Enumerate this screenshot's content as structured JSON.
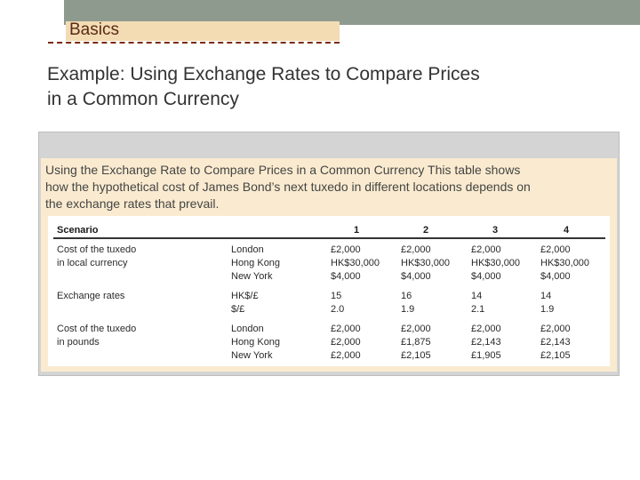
{
  "header": {
    "section_label": "Basics",
    "title_line1": "Example: Using Exchange Rates to Compare Prices",
    "title_line2": "in a Common Currency"
  },
  "figure": {
    "caption_line1": "Using the Exchange Rate to Compare Prices in a Common Currency  This table shows",
    "caption_line2": "how the hypothetical cost of James Bond’s next tuxedo in different locations depends on",
    "caption_line3": "the exchange rates that prevail."
  },
  "table": {
    "scenario_label": "Scenario",
    "scenarios": [
      "1",
      "2",
      "3",
      "4"
    ],
    "groups": [
      {
        "label_lines": [
          "Cost of the tuxedo",
          "in local currency"
        ],
        "rows": [
          {
            "location": "London",
            "values": [
              "£2,000",
              "£2,000",
              "£2,000",
              "£2,000"
            ]
          },
          {
            "location": "Hong Kong",
            "values": [
              "HK$30,000",
              "HK$30,000",
              "HK$30,000",
              "HK$30,000"
            ]
          },
          {
            "location": "New York",
            "values": [
              "$4,000",
              "$4,000",
              "$4,000",
              "$4,000"
            ]
          }
        ]
      },
      {
        "label_lines": [
          "Exchange rates",
          ""
        ],
        "rows": [
          {
            "location": "HK$/£",
            "values": [
              "15",
              "16",
              "14",
              "14"
            ]
          },
          {
            "location": "$/£",
            "values": [
              "2.0",
              "1.9",
              "2.1",
              "1.9"
            ]
          }
        ]
      },
      {
        "label_lines": [
          "Cost of the tuxedo",
          "in pounds"
        ],
        "rows": [
          {
            "location": "London",
            "values": [
              "£2,000",
              "£2,000",
              "£2,000",
              "£2,000"
            ]
          },
          {
            "location": "Hong Kong",
            "values": [
              "£2,000",
              "£1,875",
              "£2,143",
              "£2,143"
            ]
          },
          {
            "location": "New York",
            "values": [
              "£2,000",
              "£2,105",
              "£1,905",
              "£2,105"
            ]
          }
        ]
      }
    ]
  }
}
